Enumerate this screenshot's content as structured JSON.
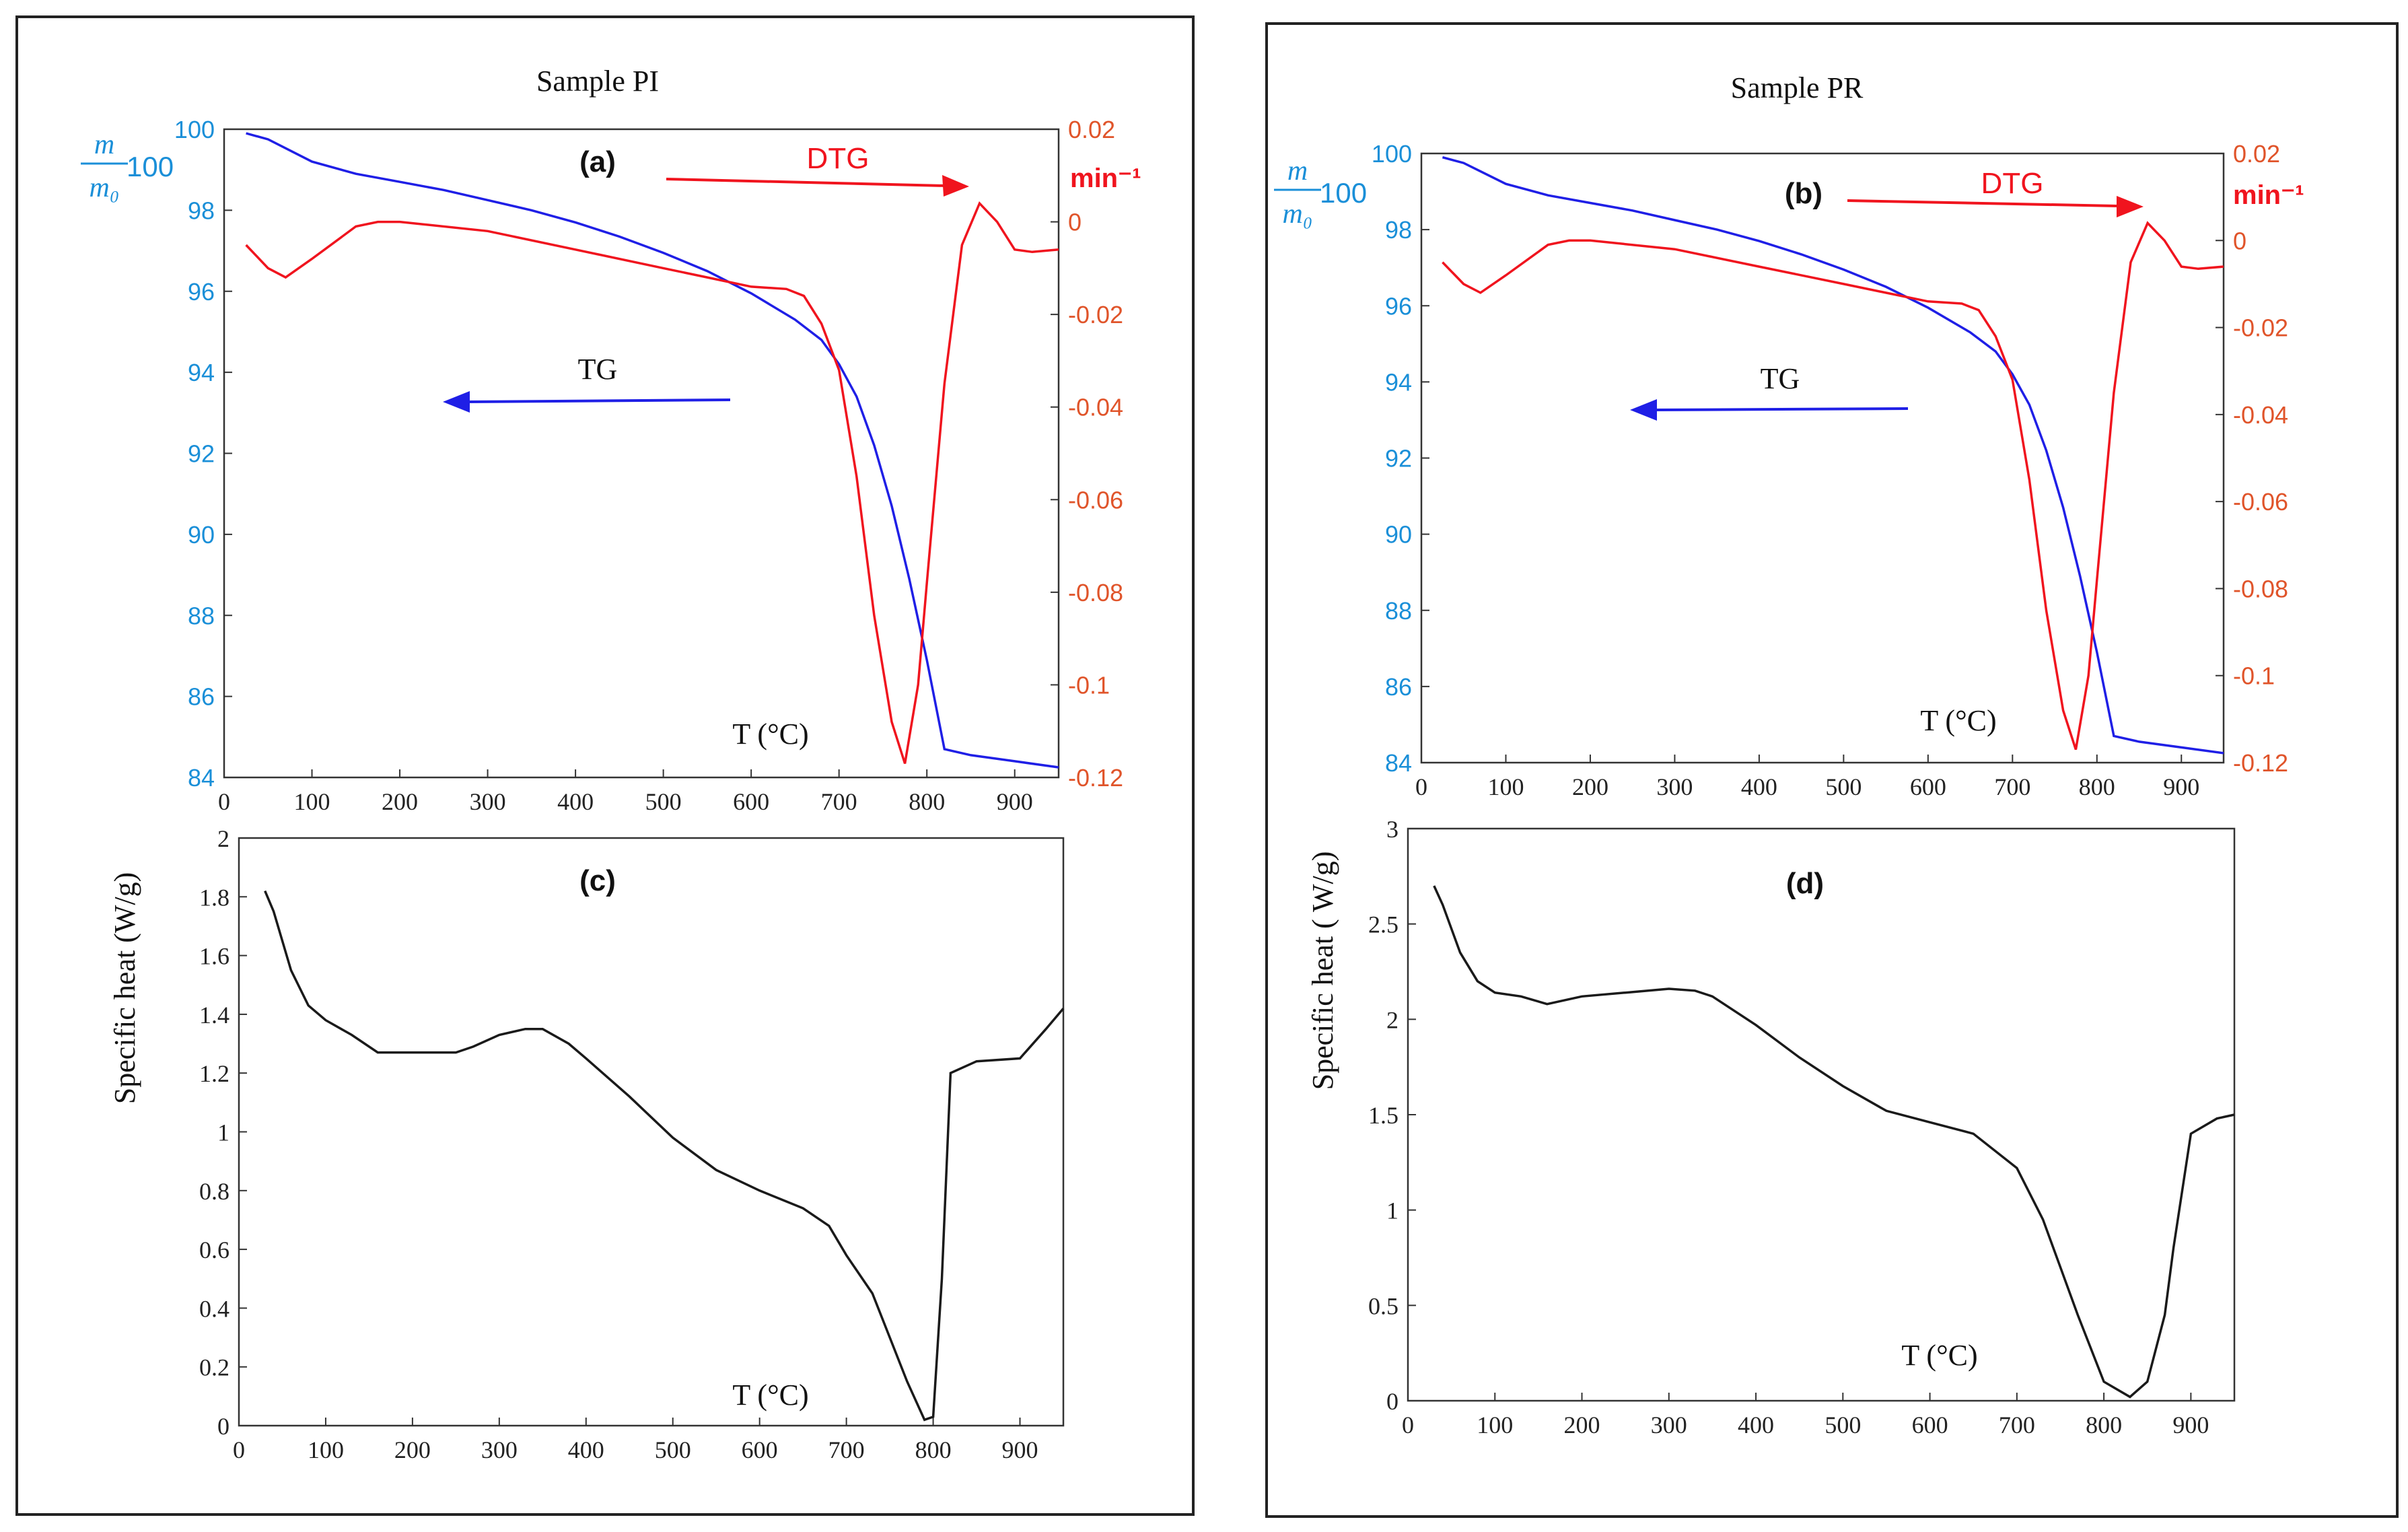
{
  "colors": {
    "tg": "#1f1fe6",
    "dtg": "#f0141e",
    "left_axis": "#1a8fd8",
    "right_axis": "#e0542a",
    "cp": "#1a1a1a"
  },
  "panels": [
    {
      "name": "sample-pi",
      "title": "Sample PI",
      "tg_dtg": {
        "label": "(a)",
        "xlabel": "T (°C)",
        "ylabel_num": "m",
        "ylabel_den": "m₀",
        "ylabel_factor": "100",
        "y2label": "min⁻¹",
        "tg_label": "TG",
        "dtg_label": "DTG",
        "x_ticks": [
          "0",
          "100",
          "200",
          "300",
          "400",
          "500",
          "600",
          "700",
          "800",
          "900"
        ],
        "y_ticks": [
          "84",
          "86",
          "88",
          "90",
          "92",
          "94",
          "96",
          "98",
          "100"
        ],
        "y2_ticks": [
          "-0.12",
          "-0.1",
          "-0.08",
          "-0.06",
          "-0.04",
          "-0.02",
          "0",
          "0.02"
        ]
      },
      "cp": {
        "label": "(c)",
        "xlabel": "T (°C)",
        "ylabel": "Specific heat (W/g)",
        "x_ticks": [
          "0",
          "100",
          "200",
          "300",
          "400",
          "500",
          "600",
          "700",
          "800",
          "900"
        ],
        "y_ticks": [
          "0",
          "0.2",
          "0.4",
          "0.6",
          "0.8",
          "1",
          "1.2",
          "1.4",
          "1.6",
          "1.8",
          "2"
        ]
      }
    },
    {
      "name": "sample-pr",
      "title": "Sample PR",
      "tg_dtg": {
        "label": "(b)",
        "xlabel": "T (°C)",
        "ylabel_num": "m",
        "ylabel_den": "m₀",
        "ylabel_factor": "100",
        "y2label": "min⁻¹",
        "tg_label": "TG",
        "dtg_label": "DTG",
        "x_ticks": [
          "0",
          "100",
          "200",
          "300",
          "400",
          "500",
          "600",
          "700",
          "800",
          "900"
        ],
        "y_ticks": [
          "84",
          "86",
          "88",
          "90",
          "92",
          "94",
          "96",
          "98",
          "100"
        ],
        "y2_ticks": [
          "-0.12",
          "-0.1",
          "-0.08",
          "-0.06",
          "-0.04",
          "-0.02",
          "0",
          "0.02"
        ]
      },
      "cp": {
        "label": "(d)",
        "xlabel": "T (°C)",
        "ylabel": "Specific heat ( W/g)",
        "x_ticks": [
          "0",
          "100",
          "200",
          "300",
          "400",
          "500",
          "600",
          "700",
          "800",
          "900"
        ],
        "y_ticks": [
          "0",
          "0.5",
          "1",
          "1.5",
          "2",
          "2.5",
          "3"
        ]
      }
    }
  ],
  "chart_data": [
    {
      "type": "line",
      "panel": "a",
      "title": "Sample PI",
      "xlabel": "T (°C)",
      "xlim": [
        0,
        950
      ],
      "ylim": [
        84,
        100
      ],
      "y2lim": [
        -0.12,
        0.02
      ],
      "series": [
        {
          "name": "TG",
          "axis": "left",
          "x": [
            25,
            50,
            100,
            150,
            200,
            250,
            300,
            350,
            400,
            450,
            500,
            550,
            600,
            650,
            680,
            700,
            720,
            740,
            760,
            780,
            800,
            820,
            850,
            900,
            950
          ],
          "values": [
            99.9,
            99.75,
            99.2,
            98.9,
            98.7,
            98.5,
            98.25,
            98.0,
            97.7,
            97.35,
            96.95,
            96.5,
            95.95,
            95.3,
            94.8,
            94.2,
            93.4,
            92.2,
            90.7,
            88.9,
            86.9,
            84.7,
            84.55,
            84.4,
            84.25
          ]
        },
        {
          "name": "DTG",
          "axis": "right",
          "x": [
            25,
            50,
            70,
            100,
            150,
            175,
            200,
            300,
            400,
            500,
            550,
            600,
            640,
            660,
            680,
            700,
            720,
            740,
            760,
            775,
            790,
            800,
            820,
            840,
            860,
            880,
            900,
            920,
            950
          ],
          "values": [
            -0.005,
            -0.01,
            -0.012,
            -0.008,
            -0.001,
            0.0,
            0.0,
            -0.002,
            -0.006,
            -0.01,
            -0.012,
            -0.014,
            -0.0145,
            -0.016,
            -0.022,
            -0.032,
            -0.055,
            -0.085,
            -0.108,
            -0.117,
            -0.1,
            -0.078,
            -0.035,
            -0.005,
            0.004,
            0.0,
            -0.006,
            -0.0065,
            -0.006
          ]
        }
      ]
    },
    {
      "type": "line",
      "panel": "b",
      "title": "Sample PR",
      "xlabel": "T (°C)",
      "xlim": [
        0,
        950
      ],
      "ylim": [
        84,
        100
      ],
      "y2lim": [
        -0.12,
        0.02
      ],
      "series": [
        {
          "name": "TG",
          "axis": "left",
          "x": [
            25,
            50,
            100,
            150,
            200,
            250,
            300,
            350,
            400,
            450,
            500,
            550,
            600,
            650,
            680,
            700,
            720,
            740,
            760,
            780,
            800,
            820,
            850,
            900,
            950
          ],
          "values": [
            99.9,
            99.75,
            99.2,
            98.9,
            98.7,
            98.5,
            98.25,
            98.0,
            97.7,
            97.35,
            96.95,
            96.5,
            95.95,
            95.3,
            94.8,
            94.2,
            93.4,
            92.2,
            90.7,
            88.9,
            86.9,
            84.7,
            84.55,
            84.4,
            84.25
          ]
        },
        {
          "name": "DTG",
          "axis": "right",
          "x": [
            25,
            50,
            70,
            100,
            150,
            175,
            200,
            300,
            400,
            500,
            550,
            600,
            640,
            660,
            680,
            700,
            720,
            740,
            760,
            775,
            790,
            800,
            820,
            840,
            860,
            880,
            900,
            920,
            950
          ],
          "values": [
            -0.005,
            -0.01,
            -0.012,
            -0.008,
            -0.001,
            0.0,
            0.0,
            -0.002,
            -0.006,
            -0.01,
            -0.012,
            -0.014,
            -0.0145,
            -0.016,
            -0.022,
            -0.032,
            -0.055,
            -0.085,
            -0.108,
            -0.117,
            -0.1,
            -0.078,
            -0.035,
            -0.005,
            0.004,
            0.0,
            -0.006,
            -0.0065,
            -0.006
          ]
        }
      ]
    },
    {
      "type": "line",
      "panel": "c",
      "xlabel": "T (°C)",
      "ylabel": "Specific heat (W/g)",
      "xlim": [
        0,
        950
      ],
      "ylim": [
        0,
        2
      ],
      "series": [
        {
          "name": "Specific heat",
          "x": [
            30,
            40,
            60,
            80,
            100,
            130,
            160,
            200,
            250,
            270,
            300,
            330,
            350,
            380,
            400,
            450,
            500,
            550,
            600,
            650,
            680,
            700,
            730,
            750,
            770,
            790,
            800,
            810,
            820,
            850,
            900,
            930,
            950
          ],
          "values": [
            1.82,
            1.75,
            1.55,
            1.43,
            1.38,
            1.33,
            1.27,
            1.27,
            1.27,
            1.29,
            1.33,
            1.35,
            1.35,
            1.3,
            1.25,
            1.12,
            0.98,
            0.87,
            0.8,
            0.74,
            0.68,
            0.58,
            0.45,
            0.3,
            0.15,
            0.02,
            0.03,
            0.5,
            1.2,
            1.24,
            1.25,
            1.35,
            1.42
          ]
        }
      ]
    },
    {
      "type": "line",
      "panel": "d",
      "xlabel": "T (°C)",
      "ylabel": "Specific heat ( W/g)",
      "xlim": [
        0,
        950
      ],
      "ylim": [
        0,
        3
      ],
      "series": [
        {
          "name": "Specific heat",
          "x": [
            30,
            40,
            60,
            80,
            100,
            130,
            160,
            200,
            250,
            300,
            330,
            350,
            400,
            450,
            500,
            550,
            600,
            650,
            700,
            730,
            750,
            770,
            800,
            830,
            850,
            870,
            880,
            900,
            930,
            950
          ],
          "values": [
            2.7,
            2.6,
            2.35,
            2.2,
            2.14,
            2.12,
            2.08,
            2.12,
            2.14,
            2.16,
            2.15,
            2.12,
            1.97,
            1.8,
            1.65,
            1.52,
            1.46,
            1.4,
            1.22,
            0.95,
            0.7,
            0.45,
            0.1,
            0.02,
            0.1,
            0.45,
            0.8,
            1.4,
            1.48,
            1.5
          ]
        }
      ]
    }
  ]
}
